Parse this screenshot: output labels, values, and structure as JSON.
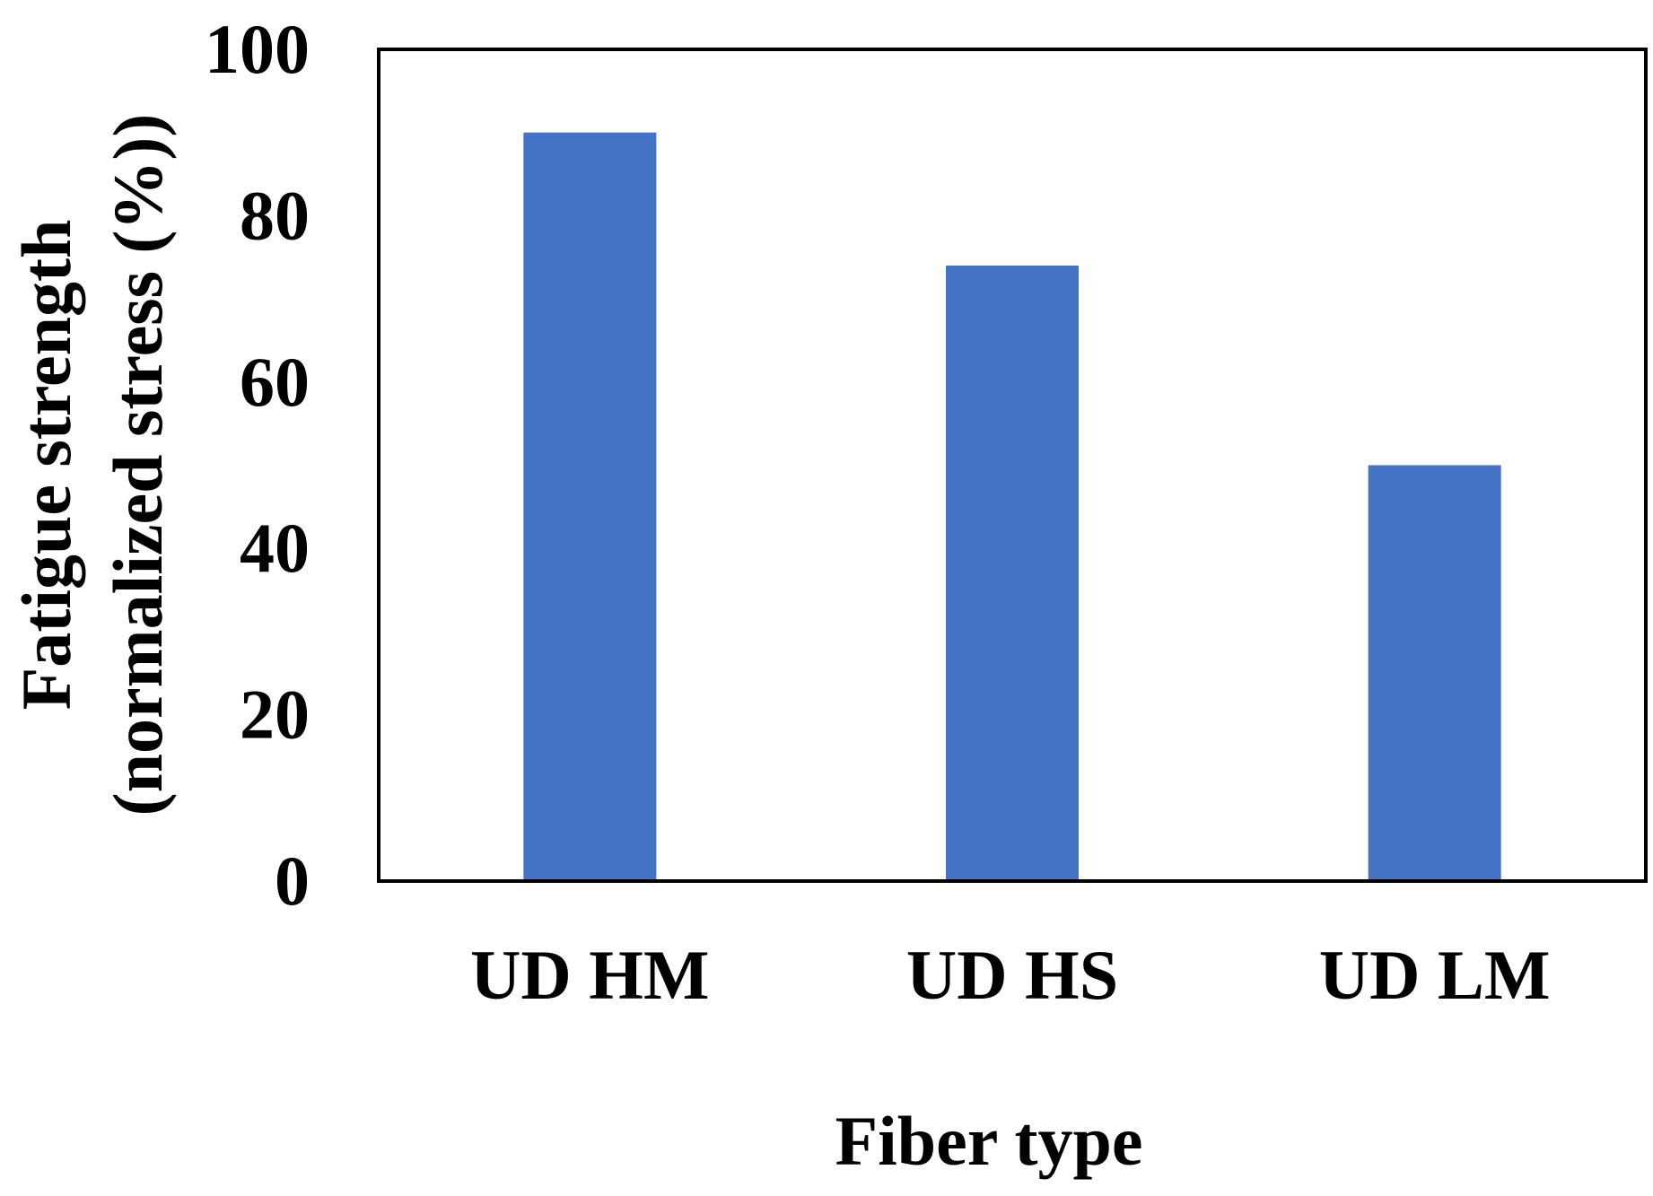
{
  "chart_data": {
    "type": "bar",
    "categories": [
      "UD HM",
      "UD HS",
      "UD LM"
    ],
    "values": [
      90,
      74,
      50
    ],
    "title": "",
    "xlabel": "Fiber type",
    "ylabel_lines": [
      "Fatigue strength",
      "(normalized stress (%))"
    ],
    "ylim": [
      0,
      100
    ],
    "yticks": [
      0,
      20,
      40,
      60,
      80,
      100
    ],
    "grid": false,
    "bar_color": "#4472C4"
  }
}
